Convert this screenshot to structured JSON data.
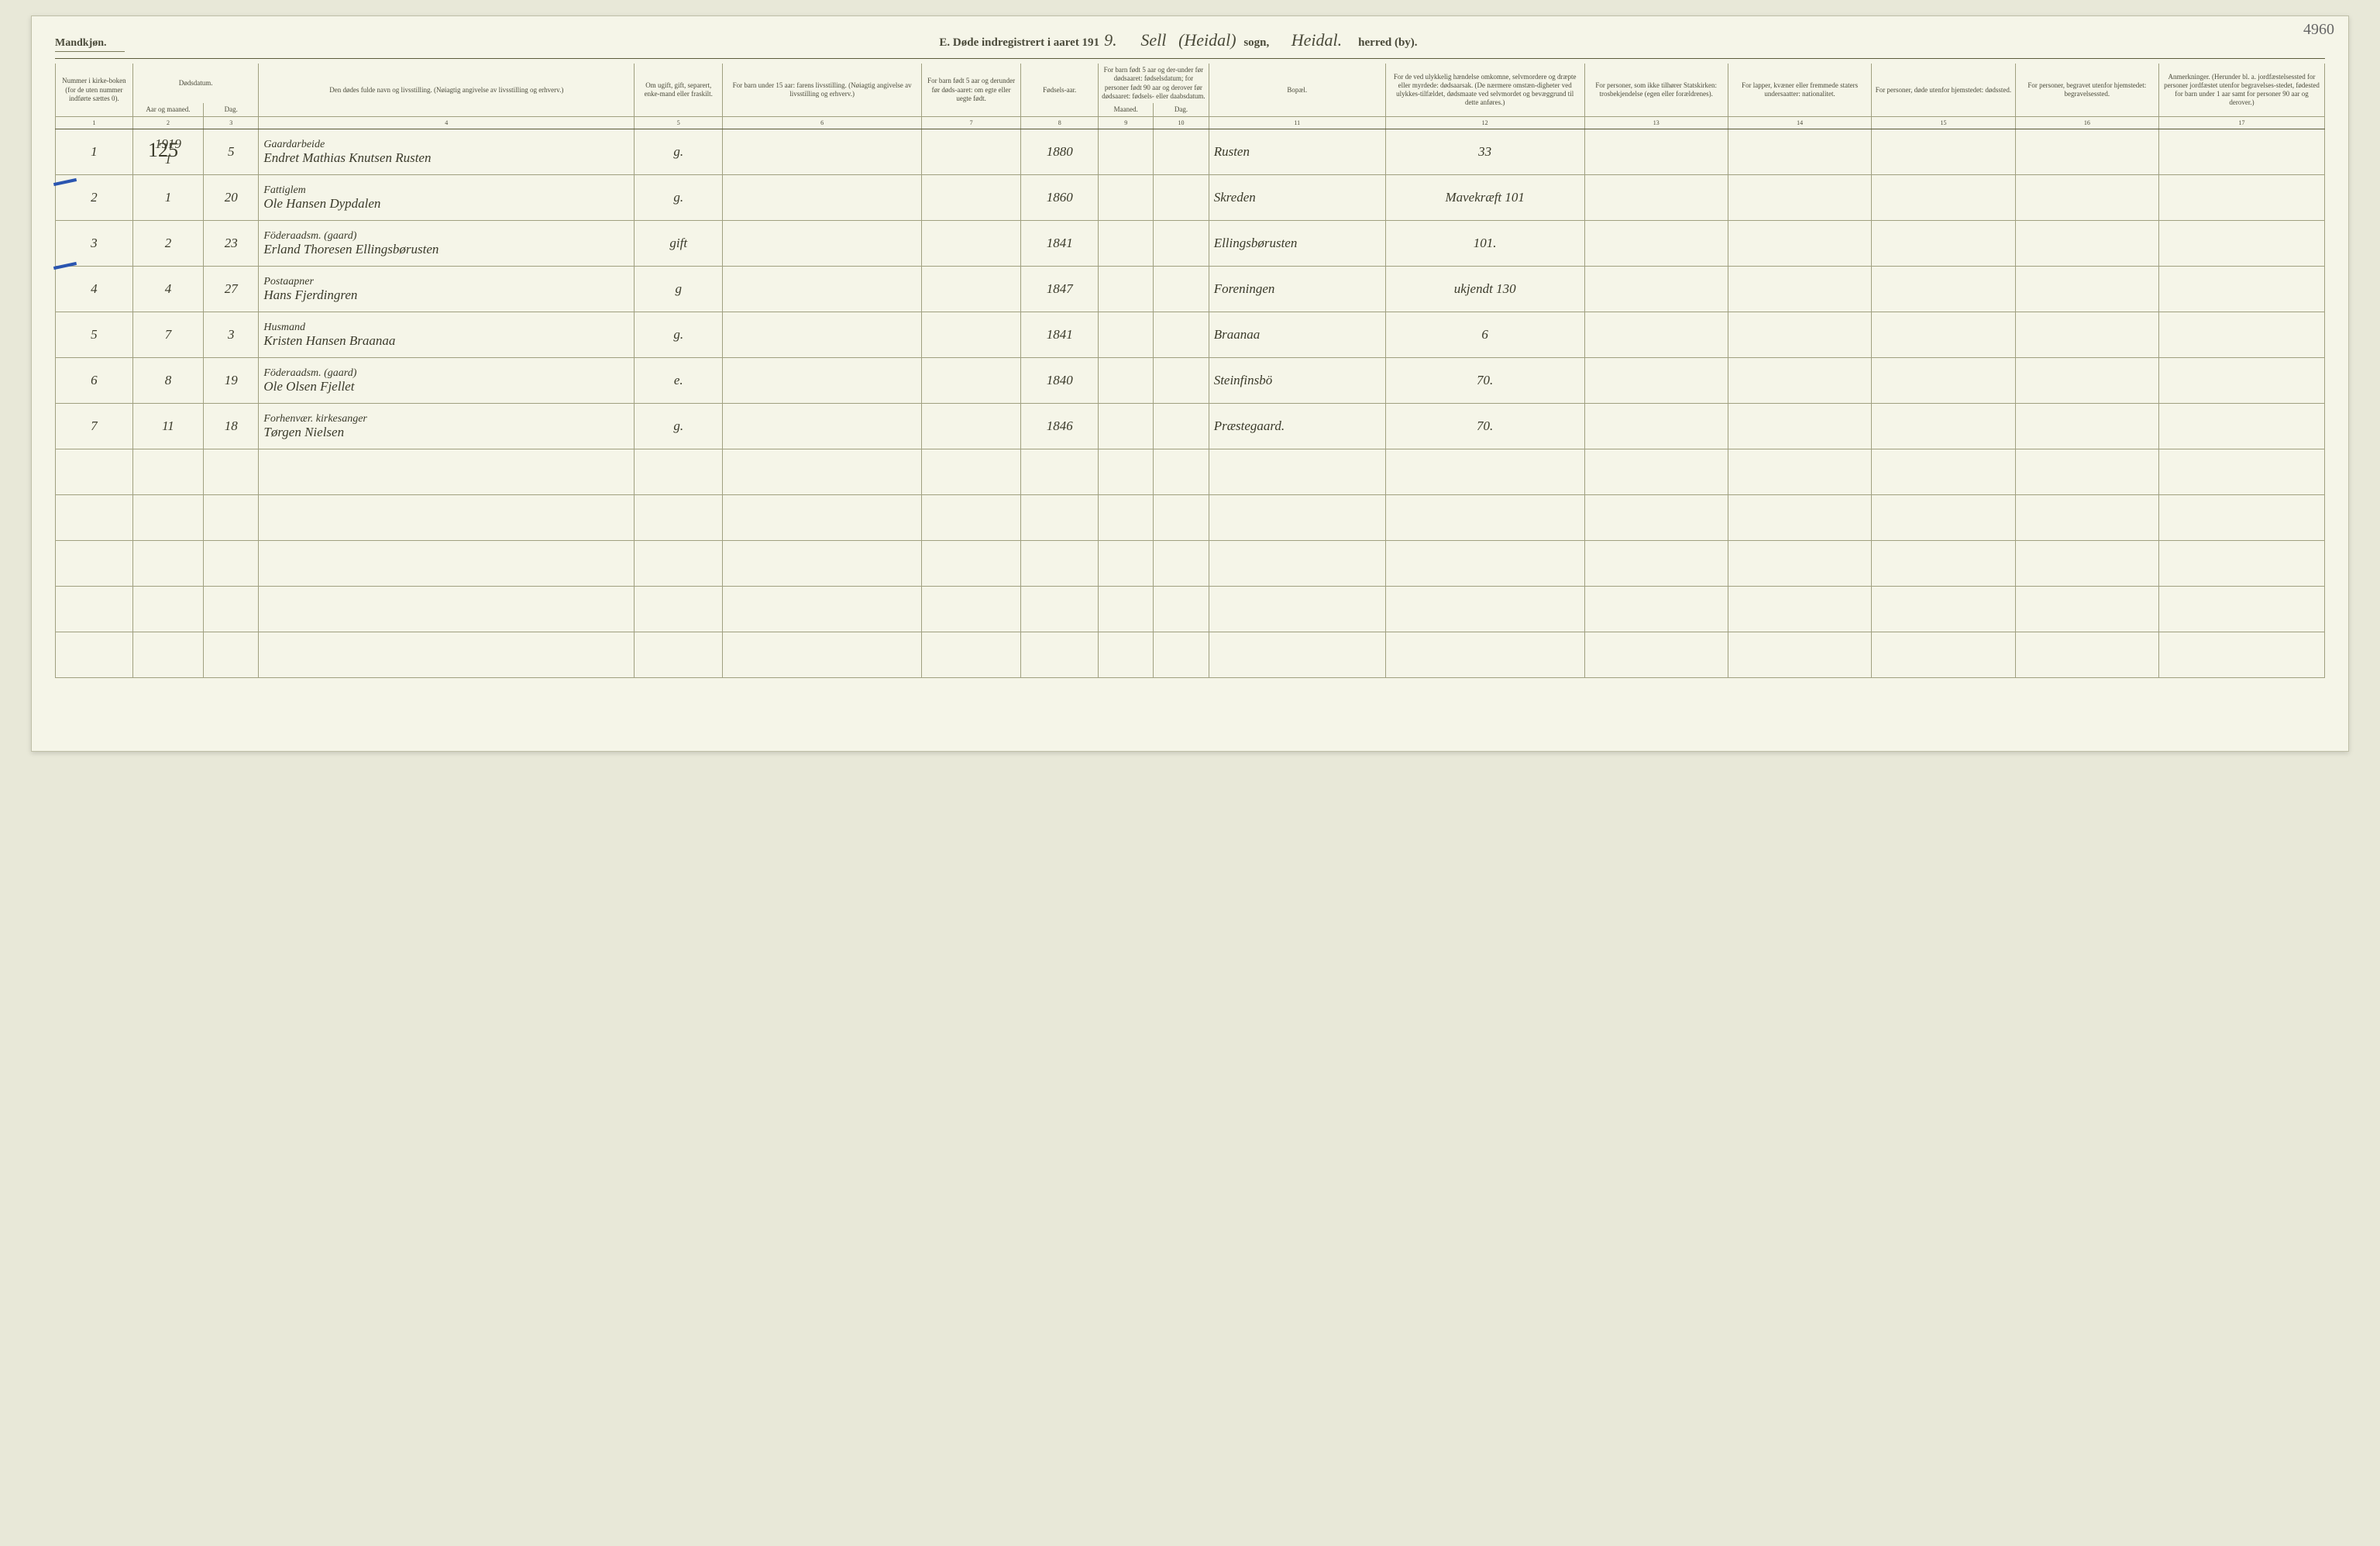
{
  "pageNumber": "4960",
  "header": {
    "gender": "Mandkjøn.",
    "titlePrefix": "E.  Døde indregistrert i aaret 191",
    "yearSuffix": "9.",
    "parishHand1": "Sell",
    "parishHand2": "(Heidal)",
    "sognLabel": "sogn,",
    "districtHand": "Heidal.",
    "herredLabel": "herred (by)."
  },
  "handAnnot": "125",
  "columns": {
    "c1": "Nummer i kirke-boken (for de uten nummer indførte sættes 0).",
    "c2a": "Dødsdatum.",
    "c2b": "Aar og maaned.",
    "c3": "Dag.",
    "c4": "Den dødes fulde navn og livsstilling. (Nøiagtig angivelse av livsstilling og erhverv.)",
    "c5": "Om ugift, gift, separert, enke-mand eller fraskilt.",
    "c6": "For barn under 15 aar: farens livsstilling. (Nøiagtig angivelse av livsstilling og erhverv.)",
    "c7": "For barn født 5 aar og derunder før døds-aaret: om egte eller uegte født.",
    "c8": "Fødsels-aar.",
    "c9a": "For barn født 5 aar og der-under før dødsaaret: fødselsdatum; for personer født 90 aar og derover før dødsaaret: fødsels- eller daabsdatum.",
    "c9b": "Maaned.",
    "c10": "Dag.",
    "c11": "Bopæl.",
    "c12": "For de ved ulykkelig hændelse omkomne, selvmordere og dræpte eller myrdede: dødsaarsak. (De nærmere omstæn-digheter ved ulykkes-tilfældet, dødsmaate ved selvmordet og bevæggrund til dette anføres.)",
    "c13": "For personer, som ikke tilhører Statskirken: trosbekjendelse (egen eller forældrenes).",
    "c14": "For lapper, kvæner eller fremmede staters undersaatter: nationalitet.",
    "c15": "For personer, døde utenfor hjemstedet: dødssted.",
    "c16": "For personer, begravet utenfor hjemstedet: begravelsessted.",
    "c17": "Anmerkninger. (Herunder bl. a. jordfæstelsessted for personer jordfæstet utenfor begravelses-stedet, fødested for barn under 1 aar samt for personer 90 aar og derover.)"
  },
  "colnums": [
    "1",
    "2",
    "3",
    "4",
    "5",
    "6",
    "7",
    "8",
    "9",
    "10",
    "11",
    "12",
    "13",
    "14",
    "15",
    "16",
    "17"
  ],
  "rows": [
    {
      "n": "1",
      "yr": "1919",
      "mo": "1",
      "d": "5",
      "occ": "Gaardarbeide",
      "name": "Endret Mathias Knutsen Rusten",
      "st": "g.",
      "birth": "1880",
      "addr": "Rusten",
      "cause": "33"
    },
    {
      "n": "2",
      "yr": "",
      "mo": "1",
      "d": "20",
      "occ": "Fattiglem",
      "name": "Ole Hansen Dypdalen",
      "st": "g.",
      "birth": "1860",
      "addr": "Skreden",
      "cause": "Mavekræft 101"
    },
    {
      "n": "3",
      "yr": "",
      "mo": "2",
      "d": "23",
      "occ": "Föderaadsm. (gaard)",
      "name": "Erland Thoresen Ellingsbørusten",
      "st": "gift",
      "birth": "1841",
      "addr": "Ellingsbørusten",
      "cause": "101."
    },
    {
      "n": "4",
      "yr": "",
      "mo": "4",
      "d": "27",
      "occ": "Postaapner",
      "name": "Hans Fjerdingren",
      "st": "g",
      "birth": "1847",
      "addr": "Foreningen",
      "cause": "ukjendt 130"
    },
    {
      "n": "5",
      "yr": "",
      "mo": "7",
      "d": "3",
      "occ": "Husmand",
      "name": "Kristen Hansen Braanaa",
      "st": "g.",
      "birth": "1841",
      "addr": "Braanaa",
      "cause": "6"
    },
    {
      "n": "6",
      "yr": "",
      "mo": "8",
      "d": "19",
      "occ": "Föderaadsm. (gaard)",
      "name": "Ole Olsen Fjellet",
      "st": "e.",
      "birth": "1840",
      "addr": "Steinfinsbö",
      "cause": "70."
    },
    {
      "n": "7",
      "yr": "",
      "mo": "11",
      "d": "18",
      "occ": "Forhenvær. kirkesanger",
      "name": "Tørgen Nielsen",
      "st": "g.",
      "birth": "1846",
      "addr": "Præstegaard.",
      "cause": "70."
    }
  ],
  "emptyRows": 5
}
